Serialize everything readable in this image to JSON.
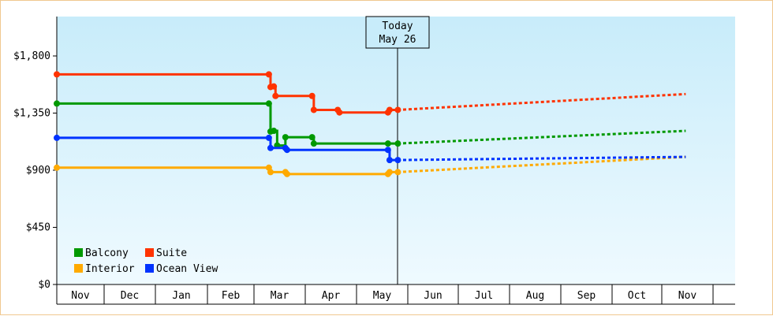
{
  "chart_data": {
    "type": "line",
    "y_ticks": [
      "$1,800",
      "$1,350",
      "$900",
      "$450",
      "$0"
    ],
    "y_tick_values": [
      1800,
      1350,
      900,
      450,
      0
    ],
    "ylim": [
      0,
      2100
    ],
    "months": [
      "Nov",
      "Dec",
      "Jan",
      "Feb",
      "Mar",
      "Apr",
      "May",
      "Jun",
      "Jul",
      "Aug",
      "Sep",
      "Oct",
      "Nov"
    ],
    "today": {
      "line1": "Today",
      "line2": "May 26"
    },
    "grid": false,
    "legend_position": "bottom-left",
    "series": [
      {
        "name": "Balcony",
        "color": "#009900",
        "history": [
          [
            "Nov 1",
            1425
          ],
          [
            "Mar 10",
            1425
          ],
          [
            "Mar 11",
            1205
          ],
          [
            "Mar 13",
            1210
          ],
          [
            "Mar 15",
            1095
          ],
          [
            "Mar 20",
            1160
          ],
          [
            "Apr 5",
            1160
          ],
          [
            "Apr 6",
            1110
          ],
          [
            "May 20",
            1110
          ],
          [
            "May 26",
            1110
          ]
        ],
        "forecast": [
          [
            "May 26",
            1110
          ],
          [
            "Dec 15",
            1210
          ]
        ]
      },
      {
        "name": "Suite",
        "color": "#ff3300",
        "history": [
          [
            "Nov 1",
            1655
          ],
          [
            "Mar 10",
            1655
          ],
          [
            "Mar 11",
            1555
          ],
          [
            "Mar 13",
            1560
          ],
          [
            "Mar 14",
            1485
          ],
          [
            "Apr 5",
            1485
          ],
          [
            "Apr 6",
            1375
          ],
          [
            "Apr 20",
            1375
          ],
          [
            "Apr 21",
            1355
          ],
          [
            "May 20",
            1355
          ],
          [
            "May 21",
            1375
          ],
          [
            "May 26",
            1375
          ]
        ],
        "forecast": [
          [
            "May 26",
            1375
          ],
          [
            "Dec 15",
            1500
          ]
        ]
      },
      {
        "name": "Interior",
        "color": "#ffaa00",
        "history": [
          [
            "Nov 1",
            920
          ],
          [
            "Mar 10",
            920
          ],
          [
            "Mar 11",
            885
          ],
          [
            "Mar 20",
            885
          ],
          [
            "Mar 21",
            870
          ],
          [
            "May 20",
            870
          ],
          [
            "May 21",
            885
          ],
          [
            "May 26",
            885
          ]
        ],
        "forecast": [
          [
            "May 26",
            885
          ],
          [
            "Dec 15",
            1005
          ]
        ]
      },
      {
        "name": "Ocean View",
        "color": "#0033ff",
        "history": [
          [
            "Nov 1",
            1155
          ],
          [
            "Mar 10",
            1155
          ],
          [
            "Mar 11",
            1075
          ],
          [
            "Mar 20",
            1075
          ],
          [
            "Mar 21",
            1060
          ],
          [
            "May 20",
            1060
          ],
          [
            "May 21",
            980
          ],
          [
            "May 26",
            980
          ]
        ],
        "forecast": [
          [
            "May 26",
            980
          ],
          [
            "Dec 15",
            1005
          ]
        ]
      }
    ]
  },
  "legend": [
    {
      "label": "Balcony",
      "color": "#009900"
    },
    {
      "label": "Suite",
      "color": "#ff3300"
    },
    {
      "label": "Interior",
      "color": "#ffaa00"
    },
    {
      "label": "Ocean View",
      "color": "#0033ff"
    }
  ]
}
